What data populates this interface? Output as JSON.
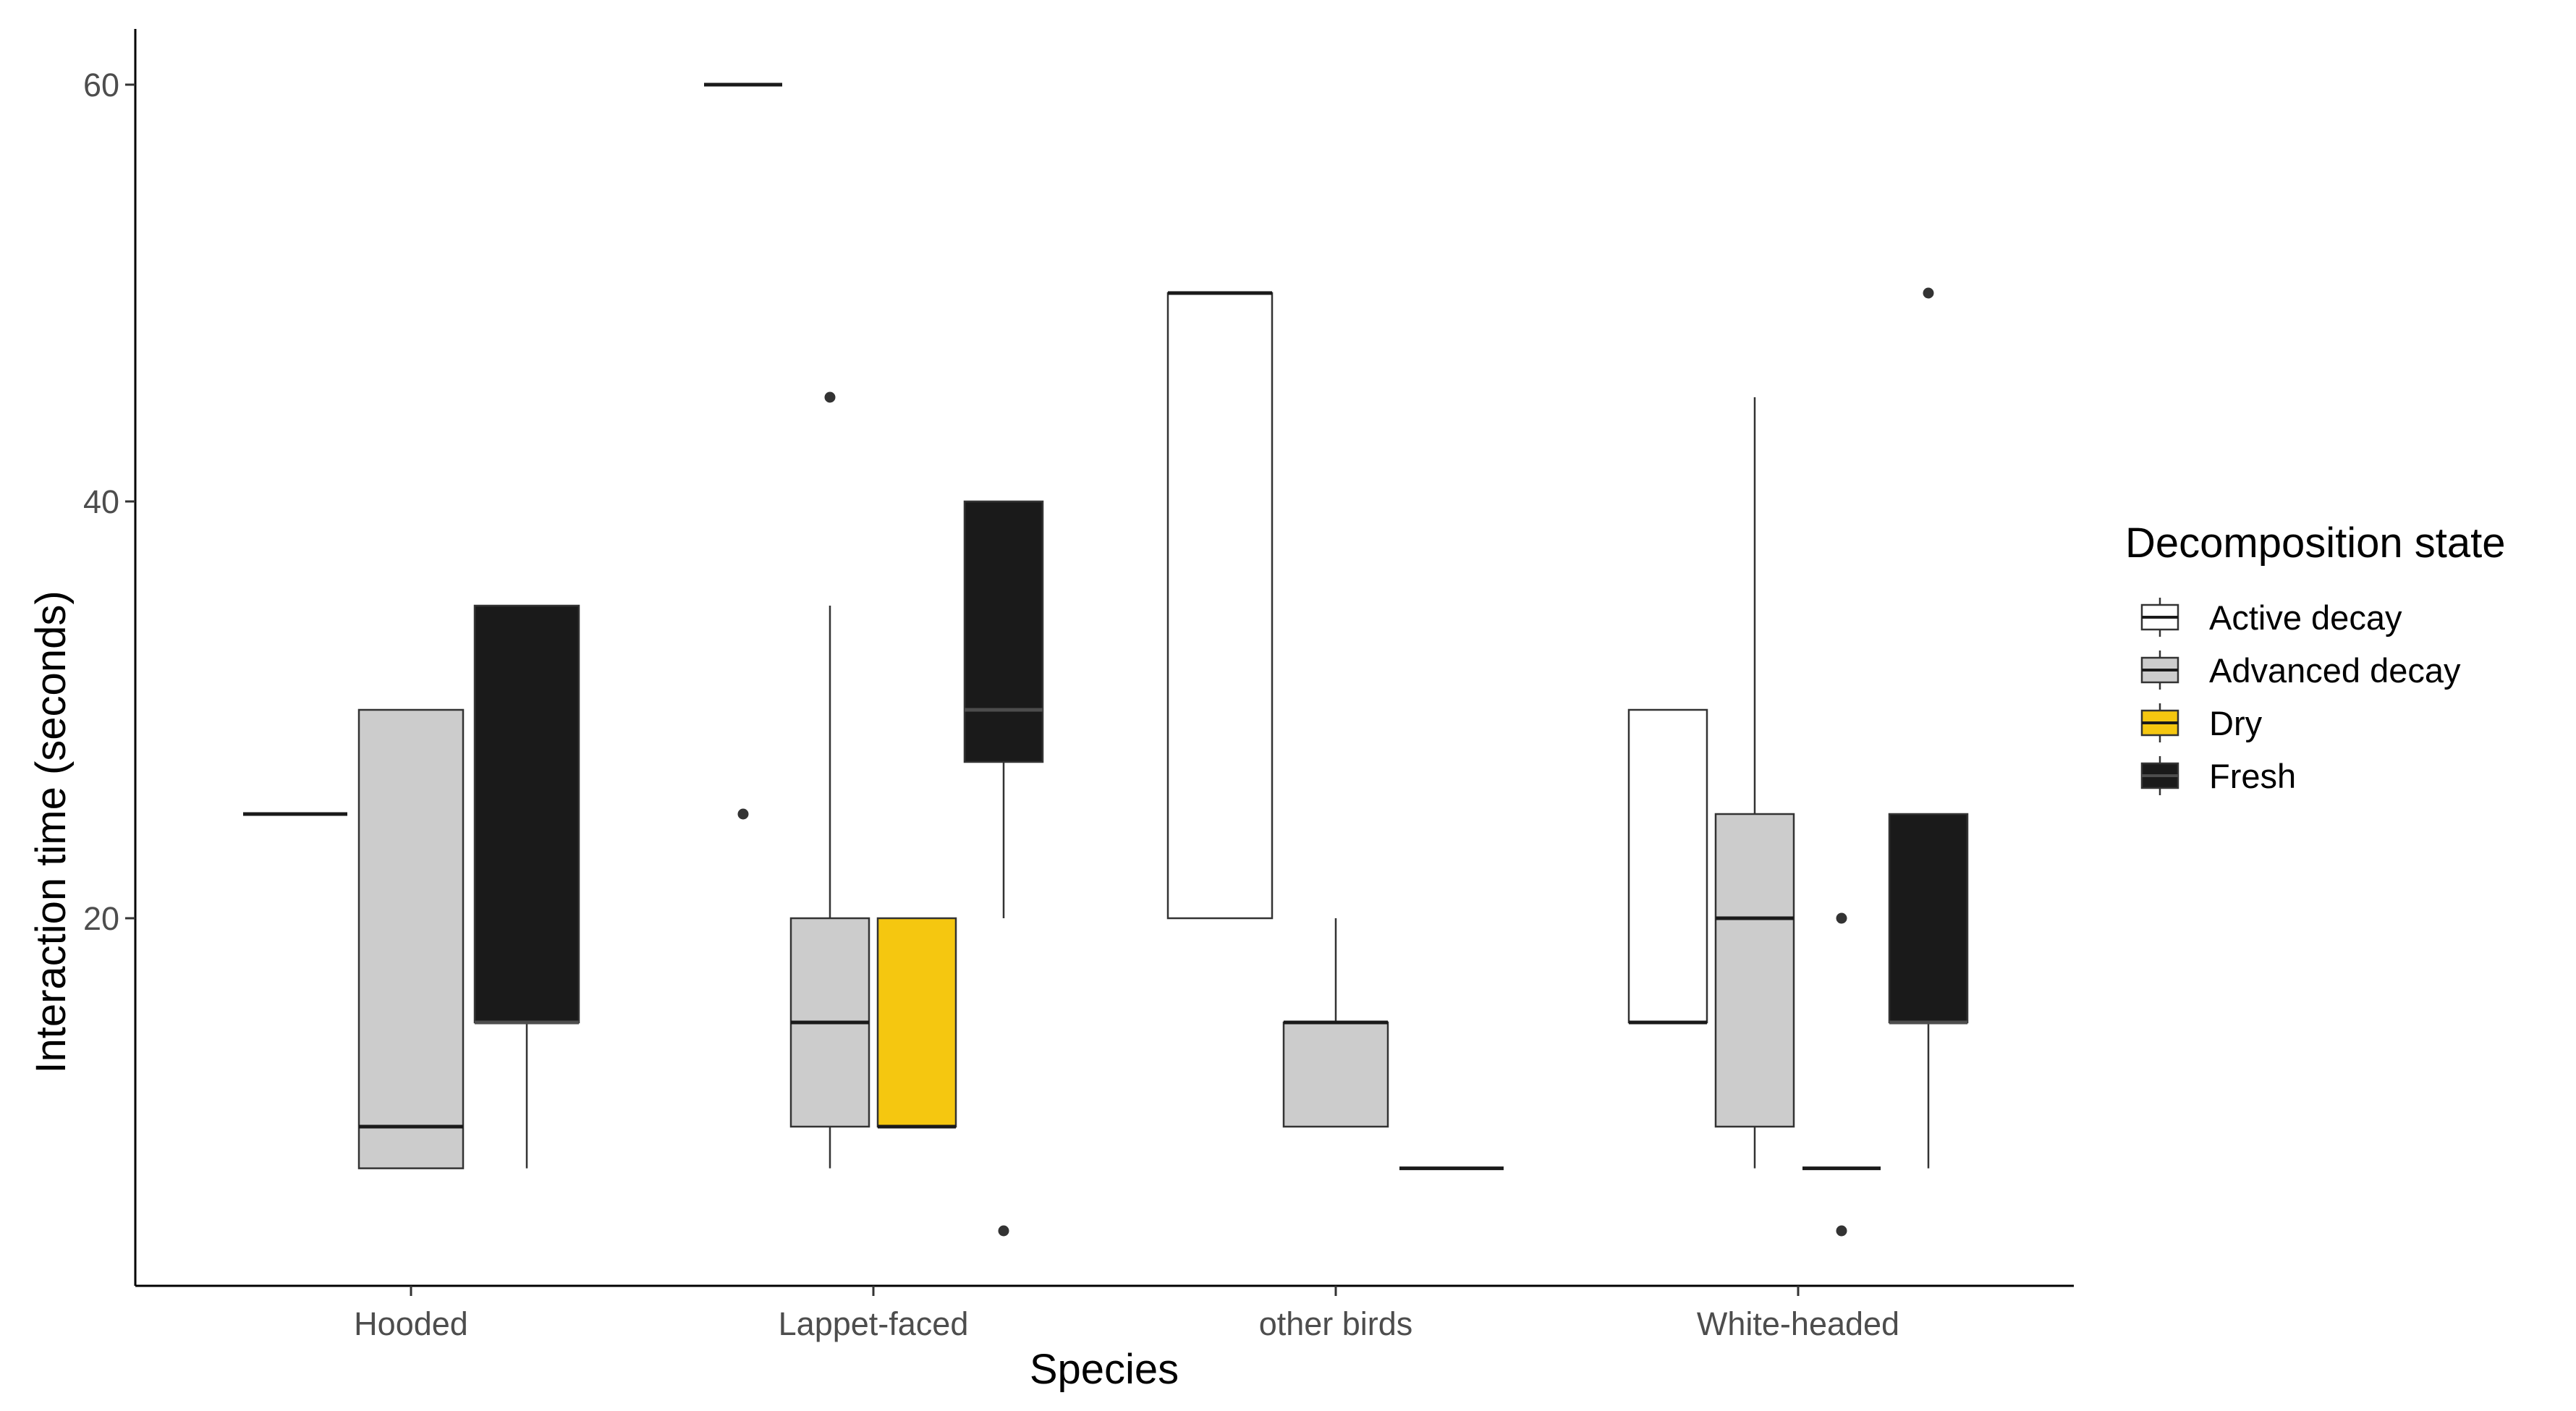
{
  "chart_data": {
    "type": "box",
    "xlabel": "Species",
    "ylabel": "Interaction time (seconds)",
    "categories": [
      "Hooded",
      "Lappet-faced",
      "other birds",
      "White-headed"
    ],
    "ylim": [
      2,
      63
    ],
    "yticks": [
      20,
      40,
      60
    ],
    "grid": false,
    "legend": {
      "title": "Decomposition state",
      "position": "right",
      "entries": [
        "Active decay",
        "Advanced decay",
        "Dry",
        "Fresh"
      ]
    },
    "series": [
      {
        "name": "Active decay",
        "color": "#ffffff",
        "median_color": "#1a1a1a",
        "boxes": [
          {
            "category": "Hooded",
            "slot": 0,
            "slots": 3,
            "min": 25,
            "q1": 25,
            "median": 25,
            "q3": 25,
            "max": 25,
            "outliers": []
          },
          {
            "category": "other birds",
            "slot": 0,
            "slots": 3,
            "min": 20,
            "q1": 20,
            "median": 50,
            "q3": 50,
            "max": 50,
            "outliers": []
          },
          {
            "category": "White-headed",
            "slot": 0,
            "slots": 4,
            "min": 15,
            "q1": 15,
            "median": 15,
            "q3": 30,
            "max": 30,
            "outliers": []
          }
        ]
      },
      {
        "name": "Advanced decay",
        "color": "#cccccc",
        "median_color": "#1a1a1a",
        "boxes": [
          {
            "category": "Hooded",
            "slot": 1,
            "slots": 3,
            "min": 8,
            "q1": 8,
            "median": 10,
            "q3": 30,
            "max": 30,
            "outliers": []
          },
          {
            "category": "Lappet-faced",
            "slot": 1,
            "slots": 4,
            "min": 8,
            "q1": 10,
            "median": 15,
            "q3": 20,
            "max": 35,
            "outliers": [
              45
            ]
          },
          {
            "category": "other birds",
            "slot": 1,
            "slots": 3,
            "min": 10,
            "q1": 10,
            "median": 15,
            "q3": 15,
            "max": 20,
            "outliers": []
          },
          {
            "category": "White-headed",
            "slot": 1,
            "slots": 4,
            "min": 8,
            "q1": 10,
            "median": 20,
            "q3": 25,
            "max": 45,
            "outliers": []
          }
        ]
      },
      {
        "name": "Dry",
        "color": "#f5c710",
        "median_color": "#1a1a1a",
        "boxes": [
          {
            "category": "Lappet-faced",
            "slot": 0,
            "slots": 4,
            "min": 60,
            "q1": 60,
            "median": 60,
            "q3": 60,
            "max": 60,
            "outliers": [
              25
            ]
          },
          {
            "category": "Lappet-faced",
            "slot": 2,
            "slots": 4,
            "min": 10,
            "q1": 10,
            "median": 10,
            "q3": 20,
            "max": 20,
            "outliers": []
          },
          {
            "category": "other birds",
            "slot": 2,
            "slots": 3,
            "min": 8,
            "q1": 8,
            "median": 8,
            "q3": 8,
            "max": 8,
            "outliers": []
          },
          {
            "category": "White-headed",
            "slot": 2,
            "slots": 4,
            "min": 8,
            "q1": 8,
            "median": 8,
            "q3": 8,
            "max": 8,
            "outliers": [
              20,
              5
            ]
          }
        ]
      },
      {
        "name": "Fresh",
        "color": "#1a1a1a",
        "median_color": "#4d4d4d",
        "boxes": [
          {
            "category": "Hooded",
            "slot": 2,
            "slots": 3,
            "min": 8,
            "q1": 15,
            "median": 15,
            "q3": 35,
            "max": 35,
            "outliers": []
          },
          {
            "category": "Lappet-faced",
            "slot": 3,
            "slots": 4,
            "min": 20,
            "q1": 27.5,
            "median": 30,
            "q3": 40,
            "max": 40,
            "outliers": [
              5
            ]
          },
          {
            "category": "White-headed",
            "slot": 3,
            "slots": 4,
            "min": 8,
            "q1": 15,
            "median": 15,
            "q3": 25,
            "max": 25,
            "outliers": [
              50
            ]
          }
        ]
      }
    ]
  }
}
